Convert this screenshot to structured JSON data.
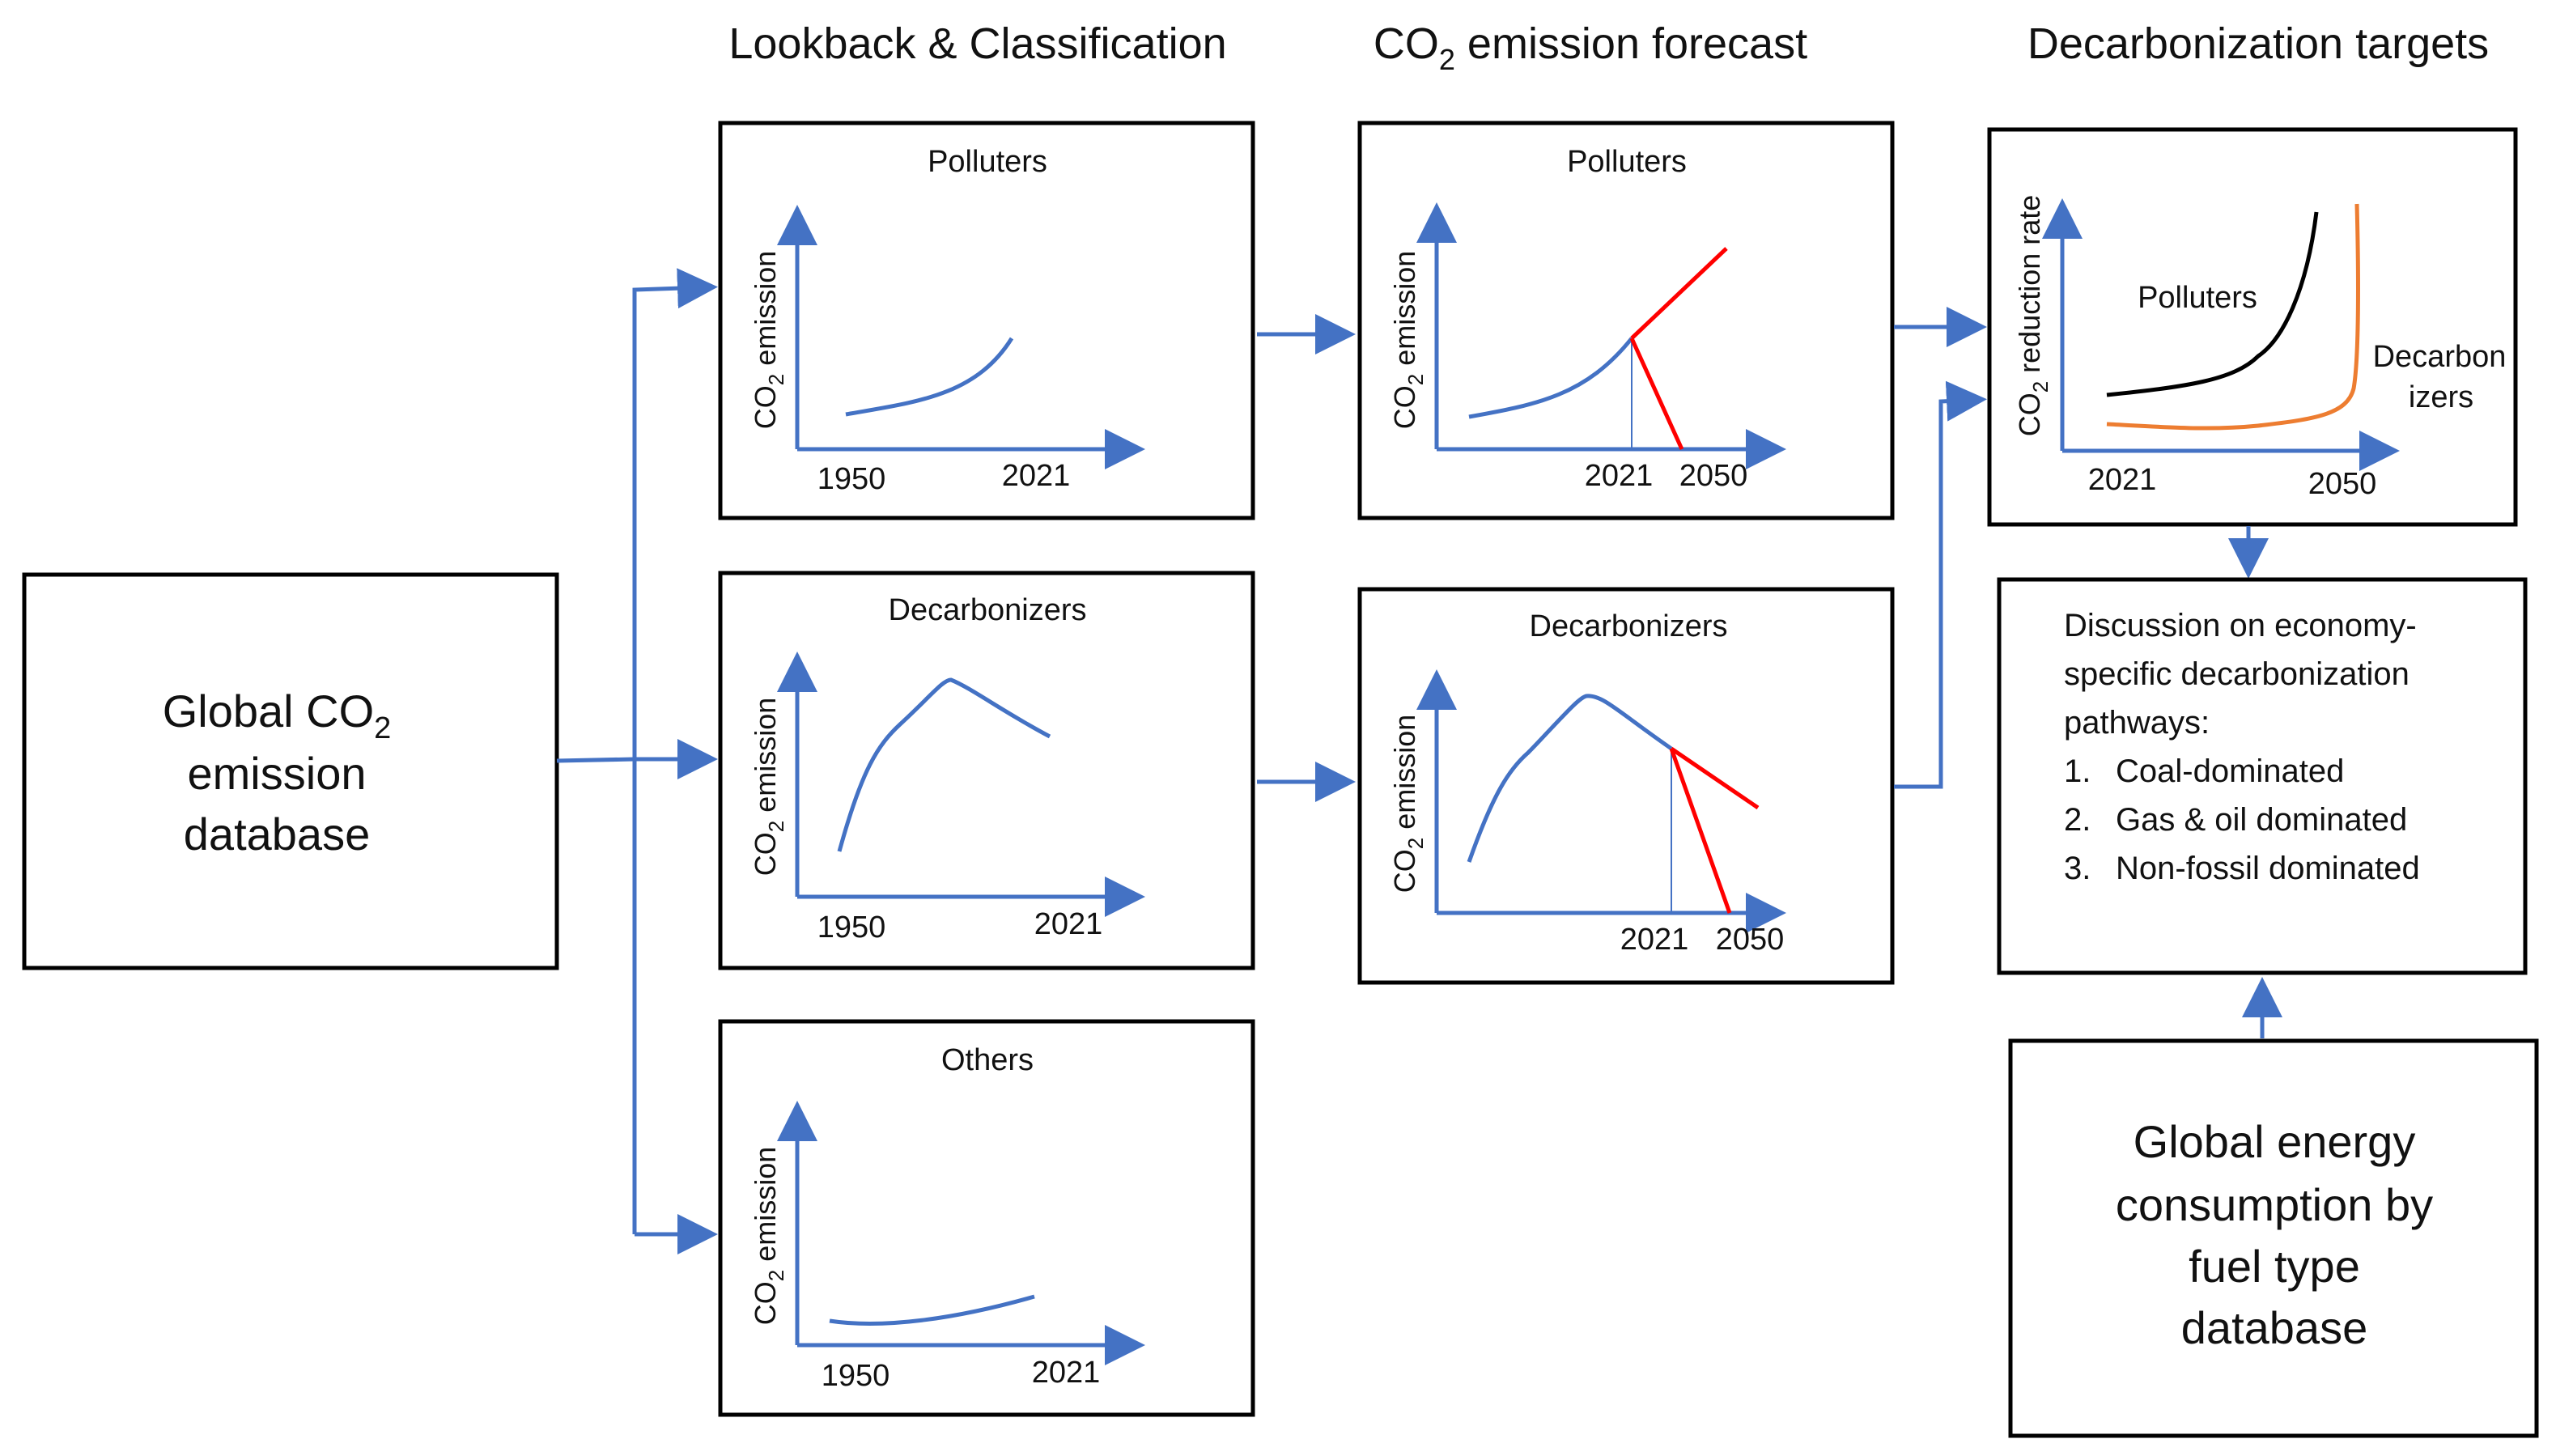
{
  "headers": {
    "lookback": "Lookback & Classification",
    "forecast_prefix": "CO",
    "forecast_sub": "2",
    "forecast_suffix": " emission forecast",
    "targets": "Decarbonization targets"
  },
  "database": {
    "line1_prefix": "Global CO",
    "line1_sub": "2",
    "line2": "emission",
    "line3": "database"
  },
  "axis": {
    "co2_prefix": "CO",
    "co2_sub": "2",
    "emission_suffix": " emission",
    "reduction_suffix": " reduction rate"
  },
  "lookback_panels": [
    {
      "title": "Polluters",
      "start": "1950",
      "end": "2021"
    },
    {
      "title": "Decarbonizers",
      "start": "1950",
      "end": "2021"
    },
    {
      "title": "Others",
      "start": "1950",
      "end": "2021"
    }
  ],
  "forecast_panels": [
    {
      "title": "Polluters",
      "now": "2021",
      "target": "2050"
    },
    {
      "title": "Decarbonizers",
      "now": "2021",
      "target": "2050"
    }
  ],
  "targets_panel": {
    "polluters_label": "Polluters",
    "decarbonizers_line1": "Decarbon",
    "decarbonizers_line2": "izers",
    "start": "2021",
    "end": "2050"
  },
  "discussion": {
    "intro_line1": "Discussion on economy-",
    "intro_line2": "specific decarbonization",
    "intro_line3": "pathways:",
    "items": [
      {
        "number": "1.",
        "text": "Coal-dominated"
      },
      {
        "number": "2.",
        "text": "Gas & oil dominated"
      },
      {
        "number": "3.",
        "text": "Non-fossil dominated"
      }
    ]
  },
  "energy_db": {
    "line1": "Global energy",
    "line2": "consumption by",
    "line3": "fuel type",
    "line4": "database"
  },
  "colors": {
    "arrow": "#4472C4",
    "curve": "#4472C4",
    "forecast": "#FF0000",
    "decarbonizer_curve": "#ED7D31",
    "polluter_curve": "#000000",
    "border": "#000000"
  }
}
